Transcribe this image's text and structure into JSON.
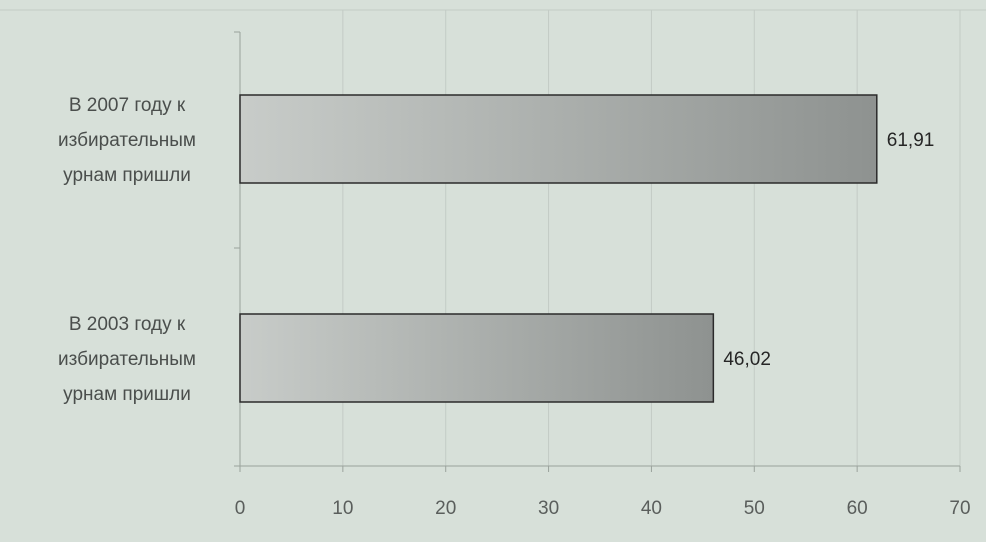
{
  "chart_data": {
    "type": "bar",
    "orientation": "horizontal",
    "categories": [
      [
        "В 2007 году к",
        "избирательным",
        "урнам пришли"
      ],
      [
        "В 2003 году к",
        "избирательным",
        "урнам пришли"
      ]
    ],
    "values": [
      61.91,
      46.02
    ],
    "value_labels": [
      "61,91",
      "46,02"
    ],
    "xlim": [
      0,
      70
    ],
    "xticks": [
      0,
      10,
      20,
      30,
      40,
      50,
      60,
      70
    ],
    "xtick_labels": [
      "0",
      "10",
      "20",
      "30",
      "40",
      "50",
      "60",
      "70"
    ],
    "title": "",
    "xlabel": "",
    "ylabel": "",
    "grid": "vertical",
    "legend": "none",
    "colors": {
      "background": "#d7e0d9",
      "bar_light": "#c8ccc9",
      "bar_dark": "#8e9290",
      "bar_edge": "#2b2b2b",
      "gridline": "#c3cbc5",
      "axis": "#9aa29c"
    }
  }
}
